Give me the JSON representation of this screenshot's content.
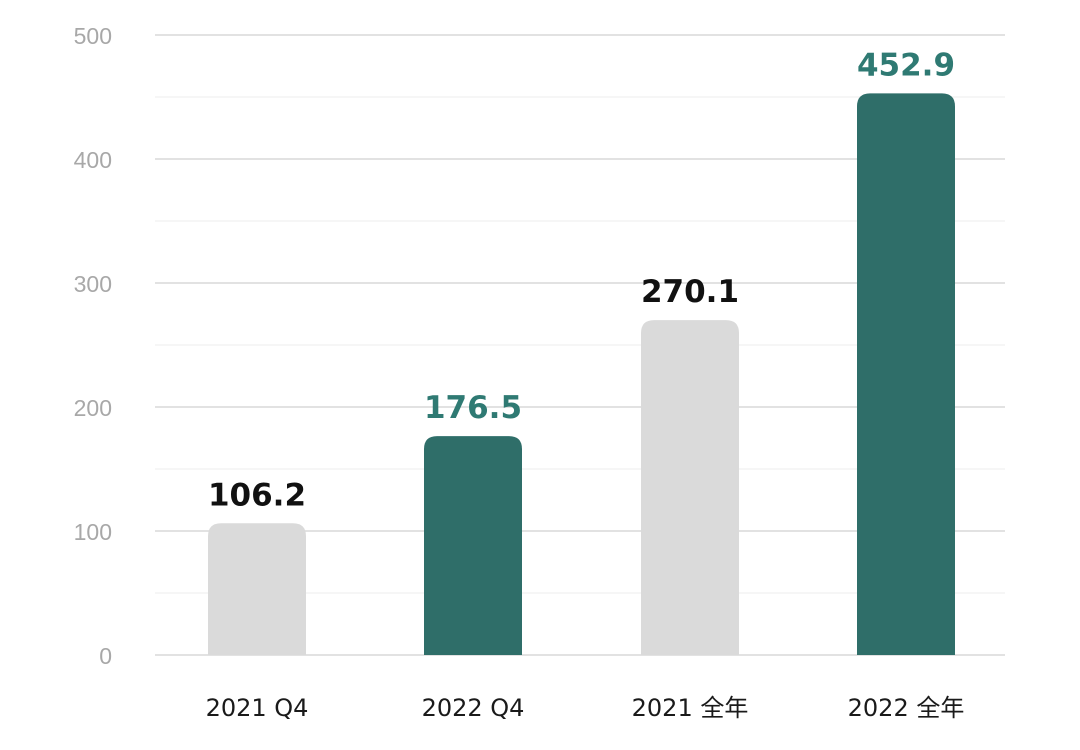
{
  "chart_data": {
    "type": "bar",
    "categories": [
      "2021 Q4",
      "2022 Q4",
      "2021 全年",
      "2022 全年"
    ],
    "values": [
      106.2,
      176.5,
      270.1,
      452.9
    ],
    "value_labels": [
      "106.2",
      "176.5",
      "270.1",
      "452.9"
    ],
    "highlighted": [
      false,
      true,
      false,
      true
    ],
    "ylim": [
      0,
      500
    ],
    "yticks": [
      "0",
      "100",
      "200",
      "300",
      "400",
      "500"
    ],
    "grid": true,
    "title": "",
    "xlabel": "",
    "ylabel": "",
    "colors": {
      "bar_default": "#dadada",
      "bar_highlight": "#2f6e69",
      "label_default": "#111111",
      "label_highlight": "#2f7a73",
      "grid_major": "#d0d0d0",
      "grid_minor": "#ececec",
      "tick_text": "#a8a8a8"
    }
  }
}
